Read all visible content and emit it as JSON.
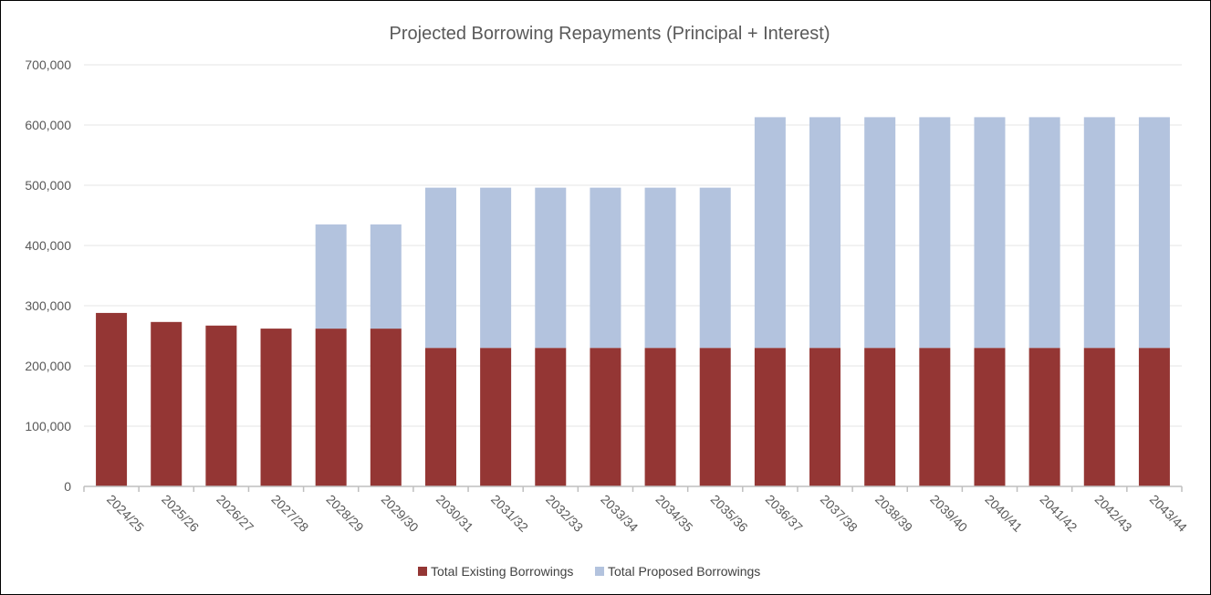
{
  "chart_data": {
    "type": "bar",
    "stacked": true,
    "title": "Projected Borrowing Repayments (Principal + Interest)",
    "xlabel": "",
    "ylabel": "",
    "ylim": [
      0,
      700000
    ],
    "yticks": [
      "0",
      "100,000",
      "200,000",
      "300,000",
      "400,000",
      "500,000",
      "600,000",
      "700,000"
    ],
    "categories": [
      "2024/25",
      "2025/26",
      "2026/27",
      "2027/28",
      "2028/29",
      "2029/30",
      "2030/31",
      "2031/32",
      "2032/33",
      "2033/34",
      "2034/35",
      "2035/36",
      "2036/37",
      "2037/38",
      "2038/39",
      "2039/40",
      "2040/41",
      "2041/42",
      "2042/43",
      "2043/44"
    ],
    "series": [
      {
        "name": "Total Existing Borrowings",
        "color": "#943634",
        "values": [
          288000,
          273000,
          267000,
          262000,
          262000,
          262000,
          230000,
          230000,
          230000,
          230000,
          230000,
          230000,
          230000,
          230000,
          230000,
          230000,
          230000,
          230000,
          230000,
          230000
        ]
      },
      {
        "name": "Total Proposed Borrowings",
        "color": "#B3C3DE",
        "values": [
          0,
          0,
          0,
          0,
          173000,
          173000,
          266000,
          266000,
          266000,
          266000,
          266000,
          266000,
          383000,
          383000,
          383000,
          383000,
          383000,
          383000,
          383000,
          383000
        ]
      }
    ],
    "grid": true,
    "legend_position": "bottom"
  }
}
